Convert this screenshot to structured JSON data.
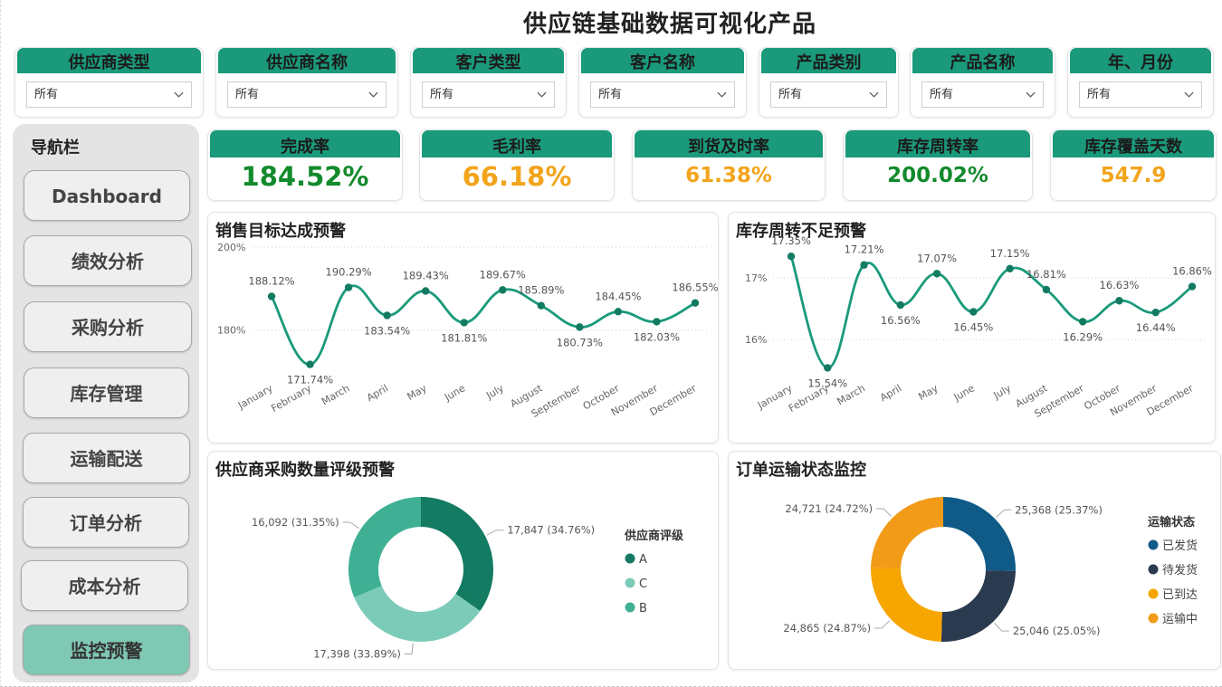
{
  "title": "供应链基础数据可视化产品",
  "filters": [
    {
      "label": "供应商类型",
      "value": "所有"
    },
    {
      "label": "供应商名称",
      "value": "所有"
    },
    {
      "label": "客户类型",
      "value": "所有"
    },
    {
      "label": "客户名称",
      "value": "所有"
    },
    {
      "label": "产品类别",
      "value": "所有"
    },
    {
      "label": "产品名称",
      "value": "所有"
    },
    {
      "label": "年、月份",
      "value": "所有"
    }
  ],
  "nav": {
    "title": "导航栏",
    "items": [
      {
        "label": "Dashboard",
        "active": false
      },
      {
        "label": "绩效分析",
        "active": false
      },
      {
        "label": "采购分析",
        "active": false
      },
      {
        "label": "库存管理",
        "active": false
      },
      {
        "label": "运输配送",
        "active": false
      },
      {
        "label": "订单分析",
        "active": false
      },
      {
        "label": "成本分析",
        "active": false
      },
      {
        "label": "监控预警",
        "active": true
      }
    ]
  },
  "kpis": [
    {
      "label": "完成率",
      "value": "184.52%",
      "color": "#138a2c"
    },
    {
      "label": "毛利率",
      "value": "66.18%",
      "color": "#f2a41b"
    },
    {
      "label": "到货及时率",
      "value": "61.38%",
      "color": "#f2a41b"
    },
    {
      "label": "库存周转率",
      "value": "200.02%",
      "color": "#138a2c"
    },
    {
      "label": "库存覆盖天数",
      "value": "547.9",
      "color": "#f2a41b"
    }
  ],
  "colors": {
    "accent": "#1a9a7b",
    "line": "#1a9a7b"
  },
  "charts": {
    "sales": {
      "title": "销售目标达成预警"
    },
    "inventory": {
      "title": "库存周转不足预警"
    },
    "supplier": {
      "title": "供应商采购数量评级预警"
    },
    "shipping": {
      "title": "订单运输状态监控"
    }
  },
  "chart_data": [
    {
      "type": "line",
      "title": "销售目标达成预警",
      "categories": [
        "January",
        "February",
        "March",
        "April",
        "May",
        "June",
        "July",
        "August",
        "September",
        "October",
        "November",
        "December"
      ],
      "values": [
        188.12,
        171.74,
        190.29,
        183.54,
        189.43,
        181.81,
        189.67,
        185.89,
        180.73,
        184.45,
        182.03,
        186.55
      ],
      "value_labels": [
        "188.12%",
        "171.74%",
        "190.29%",
        "183.54%",
        "189.43%",
        "181.81%",
        "189.67%",
        "185.89%",
        "180.73%",
        "184.45%",
        "182.03%",
        "186.55%"
      ],
      "y_ticks": [
        {
          "v": 180,
          "label": "180%"
        },
        {
          "v": 200,
          "label": "200%"
        }
      ],
      "ylim": [
        171,
        200
      ],
      "grid": true,
      "color": "#1a9a7b"
    },
    {
      "type": "line",
      "title": "库存周转不足预警",
      "categories": [
        "January",
        "February",
        "March",
        "April",
        "May",
        "June",
        "July",
        "August",
        "September",
        "October",
        "November",
        "December"
      ],
      "values": [
        17.35,
        15.54,
        17.21,
        16.56,
        17.07,
        16.45,
        17.15,
        16.81,
        16.29,
        16.63,
        16.44,
        16.86
      ],
      "value_labels": [
        "17.35%",
        "15.54%",
        "17.21%",
        "16.56%",
        "17.07%",
        "16.45%",
        "17.15%",
        "16.81%",
        "16.29%",
        "16.63%",
        "16.44%",
        "16.86%"
      ],
      "y_ticks": [
        {
          "v": 16,
          "label": "16%"
        },
        {
          "v": 17,
          "label": "17%"
        }
      ],
      "ylim": [
        15.4,
        17.5
      ],
      "grid": true,
      "color": "#1a9a7b"
    },
    {
      "type": "pie",
      "title": "供应商采购数量评级预警",
      "donut": true,
      "legend_title": "供应商评级",
      "slices": [
        {
          "name": "A",
          "value": 17847,
          "label": "17,847 (34.76%)",
          "color": "#137b62"
        },
        {
          "name": "C",
          "value": 17398,
          "label": "17,398 (33.89%)",
          "color": "#7ccbb8"
        },
        {
          "name": "B",
          "value": 16092,
          "label": "16,092 (31.35%)",
          "color": "#3fb093"
        }
      ],
      "legend_order": [
        "A",
        "C",
        "B"
      ]
    },
    {
      "type": "pie",
      "title": "订单运输状态监控",
      "donut": true,
      "legend_title": "运输状态",
      "slices": [
        {
          "name": "已发货",
          "value": 25368,
          "label": "25,368 (25.37%)",
          "color": "#0f5a87"
        },
        {
          "name": "待发货",
          "value": 25046,
          "label": "25,046 (25.05%)",
          "color": "#2a3a4f"
        },
        {
          "name": "已到达",
          "value": 24865,
          "label": "24,865 (24.87%)",
          "color": "#f7a600"
        },
        {
          "name": "运输中",
          "value": 24721,
          "label": "24,721 (24.72%)",
          "color": "#f29b18"
        }
      ],
      "legend_order": [
        "已发货",
        "待发货",
        "已到达",
        "运输中"
      ]
    }
  ]
}
